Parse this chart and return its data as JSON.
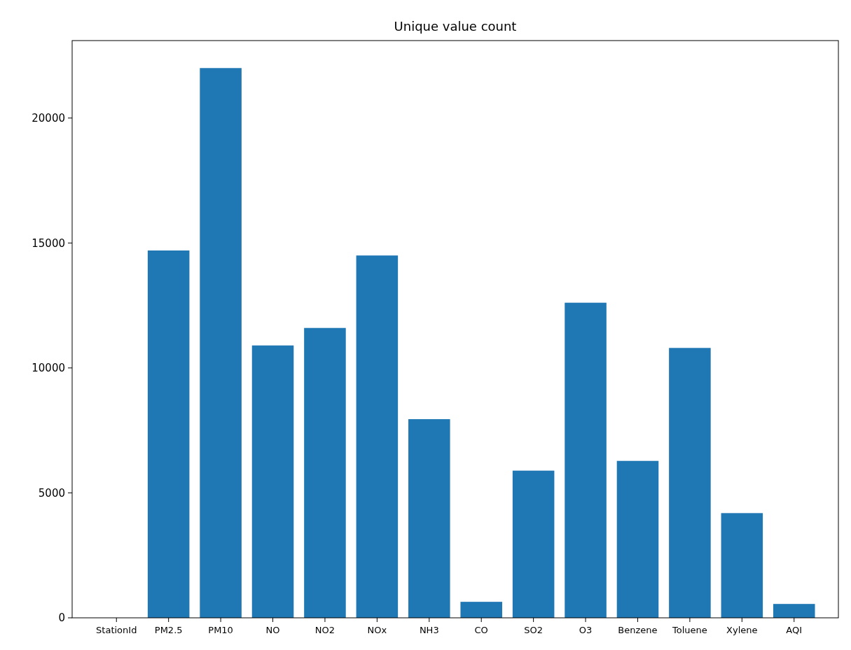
{
  "chart_data": {
    "type": "bar",
    "title": "Unique value count",
    "categories": [
      "StationId",
      "PM2.5",
      "PM10",
      "NO",
      "NO2",
      "NOx",
      "NH3",
      "CO",
      "SO2",
      "O3",
      "Benzene",
      "Toluene",
      "Xylene",
      "AQI"
    ],
    "values": [
      0,
      14700,
      22000,
      10900,
      11600,
      14500,
      7950,
      640,
      5890,
      12610,
      6280,
      10800,
      4190,
      555
    ],
    "color": "#1f77b4",
    "ylim": [
      0,
      23100
    ],
    "yticks": [
      0,
      5000,
      10000,
      15000,
      20000
    ],
    "grid": false
  }
}
